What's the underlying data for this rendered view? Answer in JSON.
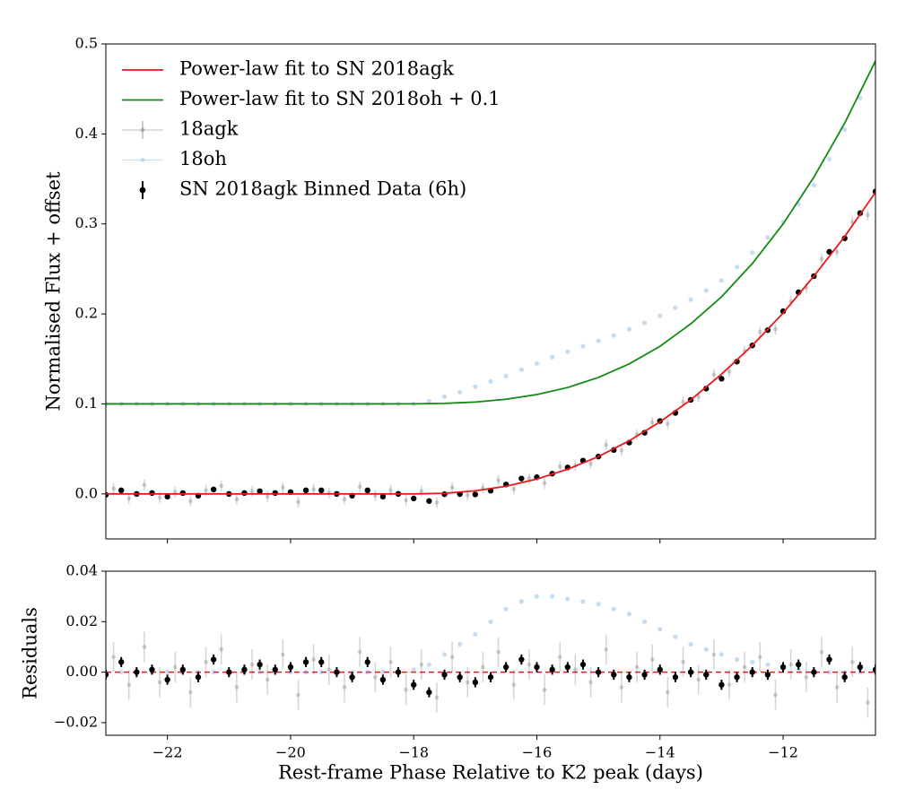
{
  "chart_data": [
    {
      "type": "line",
      "ylabel": "Normalised Flux + offset",
      "xlim": [
        -23,
        -10.5
      ],
      "xticks": [
        -22,
        -20,
        -18,
        -16,
        -14,
        -12
      ],
      "ylim": [
        -0.05,
        0.5
      ],
      "yticks": [
        {
          "value": 0,
          "label": "0.0"
        },
        {
          "value": 0.1,
          "label": "0.1"
        },
        {
          "value": 0.2,
          "label": "0.2"
        },
        {
          "value": 0.3,
          "label": "0.3"
        },
        {
          "value": 0.4,
          "label": "0.4"
        },
        {
          "value": 0.5,
          "label": "0.5"
        }
      ],
      "legend": "upper left",
      "series": [
        {
          "name": "Power-law fit to SN 2018agk",
          "kind": "line",
          "color": "#e8181c",
          "x": [
            -23,
            -22.5,
            -22,
            -21.5,
            -21,
            -20.5,
            -20,
            -19.5,
            -19,
            -18.5,
            -18,
            -17.5,
            -17,
            -16.5,
            -16,
            -15.5,
            -15,
            -14.5,
            -14,
            -13.5,
            -13,
            -12.5,
            -12,
            -11.5,
            -11,
            -10.5
          ],
          "values": [
            0,
            0,
            0,
            0,
            0,
            0,
            0,
            0,
            0,
            0,
            0,
            0.0007,
            0.0034,
            0.0085,
            0.0165,
            0.0274,
            0.0415,
            0.059,
            0.08,
            0.1045,
            0.133,
            0.165,
            0.201,
            0.242,
            0.286,
            0.335
          ]
        },
        {
          "name": "Power-law fit to SN 2018oh + 0.1",
          "kind": "line",
          "color": "#138a13",
          "x": [
            -23,
            -22.5,
            -22,
            -21.5,
            -21,
            -20.5,
            -20,
            -19.5,
            -19,
            -18.5,
            -18,
            -17.5,
            -17,
            -16.5,
            -16,
            -15.5,
            -15,
            -14.5,
            -14,
            -13.5,
            -13,
            -12.5,
            -12,
            -11.5,
            -11,
            -10.5
          ],
          "values": [
            0.1,
            0.1,
            0.1,
            0.1,
            0.1,
            0.1,
            0.1,
            0.1,
            0.1,
            0.1,
            0.1001,
            0.1006,
            0.1021,
            0.1052,
            0.1104,
            0.1182,
            0.1294,
            0.1445,
            0.164,
            0.189,
            0.219,
            0.256,
            0.3,
            0.352,
            0.412,
            0.481
          ]
        },
        {
          "name": "18agk",
          "kind": "errorbar",
          "color": "#555555",
          "alpha": 0.25,
          "error": 0.006,
          "x": [
            -22.875,
            -22.625,
            -22.375,
            -22.125,
            -21.875,
            -21.625,
            -21.375,
            -21.125,
            -20.875,
            -20.625,
            -20.375,
            -20.125,
            -19.875,
            -19.625,
            -19.375,
            -19.125,
            -18.875,
            -18.625,
            -18.375,
            -18.125,
            -17.875,
            -17.625,
            -17.375,
            -17.125,
            -16.875,
            -16.625,
            -16.375,
            -16.125,
            -15.875,
            -15.625,
            -15.375,
            -15.125,
            -14.875,
            -14.625,
            -14.375,
            -14.125,
            -13.875,
            -13.625,
            -13.375,
            -13.125,
            -12.875,
            -12.625,
            -12.375,
            -12.125,
            -11.875,
            -11.625,
            -11.375,
            -11.125,
            -10.875,
            -10.625
          ],
          "values": [
            0.006,
            -0.005,
            0.01,
            -0.004,
            0.002,
            -0.008,
            0.004,
            0.009,
            -0.006,
            0.003,
            -0.003,
            0.007,
            -0.009,
            0.005,
            0.001,
            -0.006,
            0.008,
            -0.002,
            0.004,
            -0.007,
            0.003,
            -0.0096,
            0.0071,
            -0.0015,
            0.0064,
            0.015,
            0.0053,
            0.0172,
            0.012,
            0.0304,
            0.0317,
            0.0337,
            0.0546,
            0.0483,
            0.066,
            0.0795,
            0.078,
            0.102,
            0.108,
            0.1325,
            0.136,
            0.159,
            0.18,
            0.183,
            0.214,
            0.229,
            0.261,
            0.269,
            0.302,
            0.31
          ]
        },
        {
          "name": "18oh",
          "kind": "points",
          "color": "#5b9bd5",
          "alpha": 0.35,
          "x": [
            -23,
            -22.75,
            -22.5,
            -22.25,
            -22,
            -21.75,
            -21.5,
            -21.25,
            -21,
            -20.75,
            -20.5,
            -20.25,
            -20,
            -19.75,
            -19.5,
            -19.25,
            -19,
            -18.75,
            -18.5,
            -18.25,
            -18,
            -17.75,
            -17.5,
            -17.25,
            -17,
            -16.75,
            -16.5,
            -16.25,
            -16,
            -15.75,
            -15.5,
            -15.25,
            -15,
            -14.75,
            -14.5,
            -14.25,
            -14,
            -13.75,
            -13.5,
            -13.25,
            -13,
            -12.75,
            -12.5,
            -12.25,
            -12,
            -11.75,
            -11.5,
            -11.25,
            -11,
            -10.75,
            -10.5
          ],
          "values": [
            0.1,
            0.1,
            0.1,
            0.1,
            0.1,
            0.1,
            0.1,
            0.1,
            0.1,
            0.1,
            0.1,
            0.1,
            0.1,
            0.1,
            0.1,
            0.1,
            0.1,
            0.1,
            0.1,
            0.1,
            0.1,
            0.103,
            0.108,
            0.113,
            0.119,
            0.125,
            0.131,
            0.138,
            0.145,
            0.152,
            0.158,
            0.164,
            0.17,
            0.176,
            0.183,
            0.19,
            0.198,
            0.207,
            0.216,
            0.226,
            0.237,
            0.252,
            0.268,
            0.285,
            0.302,
            0.322,
            0.343,
            0.372,
            0.405,
            0.44,
            0.478
          ]
        },
        {
          "name": "SN 2018agk Binned Data (6h)",
          "kind": "errorbar",
          "color": "#000000",
          "alpha": 1,
          "error": 0.002,
          "x": [
            -23,
            -22.75,
            -22.5,
            -22.25,
            -22,
            -21.75,
            -21.5,
            -21.25,
            -21,
            -20.75,
            -20.5,
            -20.25,
            -20,
            -19.75,
            -19.5,
            -19.25,
            -19,
            -18.75,
            -18.5,
            -18.25,
            -18,
            -17.75,
            -17.5,
            -17.25,
            -17,
            -16.75,
            -16.5,
            -16.25,
            -16,
            -15.75,
            -15.5,
            -15.25,
            -15,
            -14.75,
            -14.5,
            -14.25,
            -14,
            -13.75,
            -13.5,
            -13.25,
            -13,
            -12.75,
            -12.5,
            -12.25,
            -12,
            -11.75,
            -11.5,
            -11.25,
            -11,
            -10.75,
            -10.5
          ],
          "values": [
            -0.001,
            0.004,
            0,
            0.001,
            -0.003,
            0.001,
            -0.002,
            0.005,
            0,
            0.001,
            0.003,
            0.001,
            0.002,
            0.004,
            0.004,
            0,
            -0.002,
            0.004,
            -0.003,
            0,
            -0.005,
            -0.0079,
            -0.0003,
            -0.0002,
            -0.0006,
            0.0036,
            0.0105,
            0.0171,
            0.0185,
            0.0225,
            0.0294,
            0.037,
            0.0415,
            0.0488,
            0.057,
            0.068,
            0.081,
            0.09,
            0.1045,
            0.117,
            0.128,
            0.147,
            0.165,
            0.182,
            0.203,
            0.224,
            0.242,
            0.269,
            0.284,
            0.312,
            0.336
          ]
        }
      ]
    },
    {
      "type": "line",
      "ylabel": "Residuals",
      "xlabel": "Rest-frame Phase Relative to K2 peak (days)",
      "xlim": [
        -23,
        -10.5
      ],
      "xticks": [
        {
          "value": -22,
          "label": "−22"
        },
        {
          "value": -20,
          "label": "−20"
        },
        {
          "value": -18,
          "label": "−18"
        },
        {
          "value": -16,
          "label": "−16"
        },
        {
          "value": -14,
          "label": "−14"
        },
        {
          "value": -12,
          "label": "−12"
        }
      ],
      "ylim": [
        -0.025,
        0.04
      ],
      "yticks": [
        {
          "value": -0.02,
          "label": "−0.02"
        },
        {
          "value": 0,
          "label": "0.00"
        },
        {
          "value": 0.02,
          "label": "0.02"
        },
        {
          "value": 0.04,
          "label": "0.04"
        }
      ],
      "reference_line": {
        "value": 0,
        "color": "#e8181c",
        "style": "dashed"
      },
      "series": [
        {
          "kind": "errorbar",
          "color": "#555555",
          "alpha": 0.25,
          "error": 0.006,
          "x": [
            -22.875,
            -22.625,
            -22.375,
            -22.125,
            -21.875,
            -21.625,
            -21.375,
            -21.125,
            -20.875,
            -20.625,
            -20.375,
            -20.125,
            -19.875,
            -19.625,
            -19.375,
            -19.125,
            -18.875,
            -18.625,
            -18.375,
            -18.125,
            -17.875,
            -17.625,
            -17.375,
            -17.125,
            -16.875,
            -16.625,
            -16.375,
            -16.125,
            -15.875,
            -15.625,
            -15.375,
            -15.125,
            -14.875,
            -14.625,
            -14.375,
            -14.125,
            -13.875,
            -13.625,
            -13.375,
            -13.125,
            -12.875,
            -12.625,
            -12.375,
            -12.125,
            -11.875,
            -11.625,
            -11.375,
            -11.125,
            -10.875,
            -10.625
          ],
          "values": [
            0.006,
            -0.005,
            0.01,
            -0.004,
            0.002,
            -0.008,
            0.004,
            0.009,
            -0.006,
            0.003,
            -0.003,
            0.007,
            -0.009,
            0.005,
            0.001,
            -0.006,
            0.008,
            -0.002,
            0.004,
            -0.007,
            0.003,
            -0.01,
            0.006,
            -0.004,
            0.002,
            0.008,
            -0.005,
            0.003,
            -0.007,
            0.006,
            0.001,
            -0.004,
            0.009,
            -0.006,
            0.002,
            0.005,
            -0.008,
            0.004,
            -0.003,
            0.007,
            -0.005,
            0.002,
            0.006,
            -0.009,
            0.003,
            -0.002,
            0.008,
            -0.006,
            0.004,
            -0.012
          ]
        },
        {
          "kind": "points",
          "color": "#5b9bd5",
          "alpha": 0.35,
          "x": [
            -23,
            -22.75,
            -22.5,
            -22.25,
            -22,
            -21.75,
            -21.5,
            -21.25,
            -21,
            -20.75,
            -20.5,
            -20.25,
            -20,
            -19.75,
            -19.5,
            -19.25,
            -19,
            -18.75,
            -18.5,
            -18.25,
            -18,
            -17.75,
            -17.5,
            -17.25,
            -17,
            -16.75,
            -16.5,
            -16.25,
            -16,
            -15.75,
            -15.5,
            -15.25,
            -15,
            -14.75,
            -14.5,
            -14.25,
            -14,
            -13.75,
            -13.5,
            -13.25,
            -13,
            -12.75,
            -12.5,
            -12.25,
            -12,
            -11.75,
            -11.5,
            -11.25,
            -11,
            -10.75,
            -10.5
          ],
          "values": [
            0,
            0,
            0,
            0,
            0,
            0,
            0,
            0,
            0,
            0,
            0,
            0,
            0,
            0,
            0,
            0,
            0,
            0,
            0,
            0,
            0.001,
            0.003,
            0.007,
            0.011,
            0.015,
            0.02,
            0.025,
            0.028,
            0.03,
            0.03,
            0.029,
            0.028,
            0.027,
            0.025,
            0.023,
            0.02,
            0.017,
            0.014,
            0.011,
            0.009,
            0.007,
            0.005,
            0.004,
            0.003,
            0.002,
            0.001,
            0,
            0,
            0,
            0,
            0
          ]
        },
        {
          "kind": "errorbar",
          "color": "#000000",
          "alpha": 1,
          "error": 0.002,
          "x": [
            -23,
            -22.75,
            -22.5,
            -22.25,
            -22,
            -21.75,
            -21.5,
            -21.25,
            -21,
            -20.75,
            -20.5,
            -20.25,
            -20,
            -19.75,
            -19.5,
            -19.25,
            -19,
            -18.75,
            -18.5,
            -18.25,
            -18,
            -17.75,
            -17.5,
            -17.25,
            -17,
            -16.75,
            -16.5,
            -16.25,
            -16,
            -15.75,
            -15.5,
            -15.25,
            -15,
            -14.75,
            -14.5,
            -14.25,
            -14,
            -13.75,
            -13.5,
            -13.25,
            -13,
            -12.75,
            -12.5,
            -12.25,
            -12,
            -11.75,
            -11.5,
            -11.25,
            -11,
            -10.75,
            -10.5
          ],
          "values": [
            -0.001,
            0.004,
            0,
            0.001,
            -0.003,
            0.001,
            -0.002,
            0.005,
            0,
            0.001,
            0.003,
            0.001,
            0.002,
            0.004,
            0.004,
            0,
            -0.002,
            0.004,
            -0.003,
            0,
            -0.005,
            -0.008,
            -0.001,
            -0.002,
            -0.004,
            -0.002,
            0.002,
            0.005,
            0.002,
            0.001,
            0.002,
            0.003,
            0,
            -0.001,
            -0.002,
            -0.001,
            0.001,
            -0.002,
            0,
            -0.001,
            -0.005,
            -0.002,
            0,
            -0.001,
            0.002,
            0.003,
            0,
            0.005,
            -0.002,
            0.002,
            0.001
          ]
        }
      ]
    }
  ]
}
